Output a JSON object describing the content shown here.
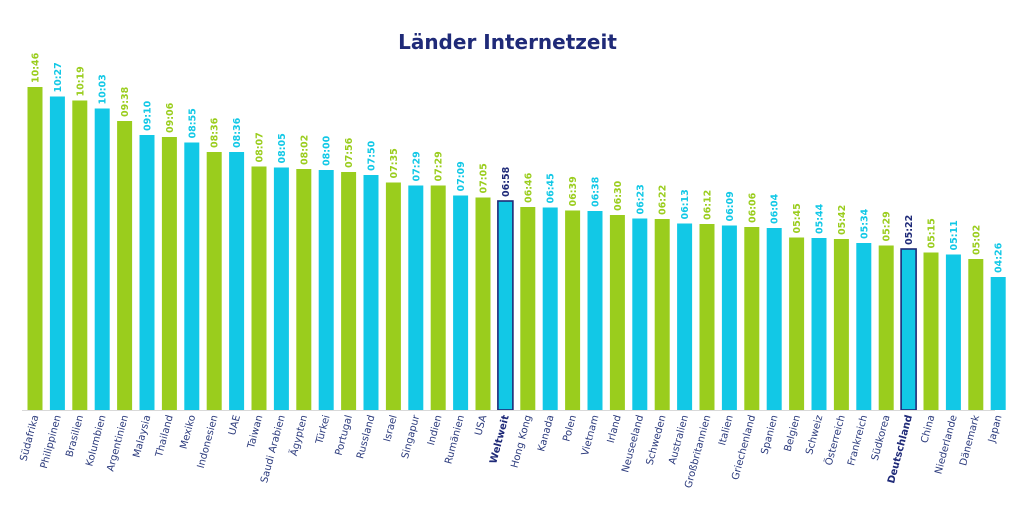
{
  "title": "Länder Internetzeit",
  "colors": {
    "green": "#9acd1d",
    "blue": "#12c8e6",
    "highlight_fill": "#12c8e6",
    "highlight_border": "#1f2a78",
    "label_dark": "#1f2a78",
    "axis": "#d9d9d9"
  },
  "chart_data": {
    "type": "bar",
    "title": "Länder Internetzeit",
    "ylim": [
      0,
      660
    ],
    "grid": false,
    "legend": "none",
    "value_unit": "minutes",
    "categories": [
      "Südafrika",
      "Philippinen",
      "Brasilien",
      "Kolumbien",
      "Argentinien",
      "Malaysia",
      "Thailand",
      "Mexiko",
      "Indonesien",
      "UAE",
      "Taiwan",
      "Saudi Arabien",
      "Ägypten",
      "Türkei",
      "Portugal",
      "Russland",
      "Israel",
      "Singapur",
      "Indien",
      "Rumänien",
      "USA",
      "Weltweit",
      "Hong Kong",
      "Kanada",
      "Polen",
      "Vietnam",
      "Irland",
      "Neuseeland",
      "Schweden",
      "Australien",
      "Großbritannien",
      "Italien",
      "Griechenland",
      "Spanien",
      "Belgien",
      "Schweiz",
      "Österreich",
      "Frankreich",
      "Südkorea",
      "Deutschland",
      "China",
      "Niederlande",
      "Dänemark",
      "Japan"
    ],
    "labels": [
      "10:46",
      "10:27",
      "10:19",
      "10:03",
      "09:38",
      "09:10",
      "09:06",
      "08:55",
      "08:36",
      "08:36",
      "08:07",
      "08:05",
      "08:02",
      "08:00",
      "07:56",
      "07:50",
      "07:35",
      "07:29",
      "07:29",
      "07:09",
      "07:05",
      "06:58",
      "06:46",
      "06:45",
      "06:39",
      "06:38",
      "06:30",
      "06:23",
      "06:22",
      "06:13",
      "06:12",
      "06:09",
      "06:06",
      "06:04",
      "05:45",
      "05:44",
      "05:42",
      "05:34",
      "05:29",
      "05:22",
      "05:15",
      "05:11",
      "05:02",
      "04:26"
    ],
    "values": [
      646,
      627,
      619,
      603,
      578,
      550,
      546,
      535,
      516,
      516,
      487,
      485,
      482,
      480,
      476,
      470,
      455,
      449,
      449,
      429,
      425,
      418,
      406,
      405,
      399,
      398,
      390,
      383,
      382,
      373,
      372,
      369,
      366,
      364,
      345,
      344,
      342,
      334,
      329,
      322,
      315,
      311,
      302,
      266
    ],
    "bar_colors": [
      "green",
      "blue",
      "green",
      "blue",
      "green",
      "blue",
      "green",
      "blue",
      "green",
      "blue",
      "green",
      "blue",
      "green",
      "blue",
      "green",
      "blue",
      "green",
      "blue",
      "green",
      "blue",
      "green",
      "highlight",
      "green",
      "blue",
      "green",
      "blue",
      "green",
      "blue",
      "green",
      "blue",
      "green",
      "blue",
      "green",
      "blue",
      "green",
      "blue",
      "green",
      "blue",
      "green",
      "highlight",
      "green",
      "blue",
      "green",
      "blue"
    ],
    "highlighted": [
      "Weltweit",
      "Deutschland"
    ]
  }
}
